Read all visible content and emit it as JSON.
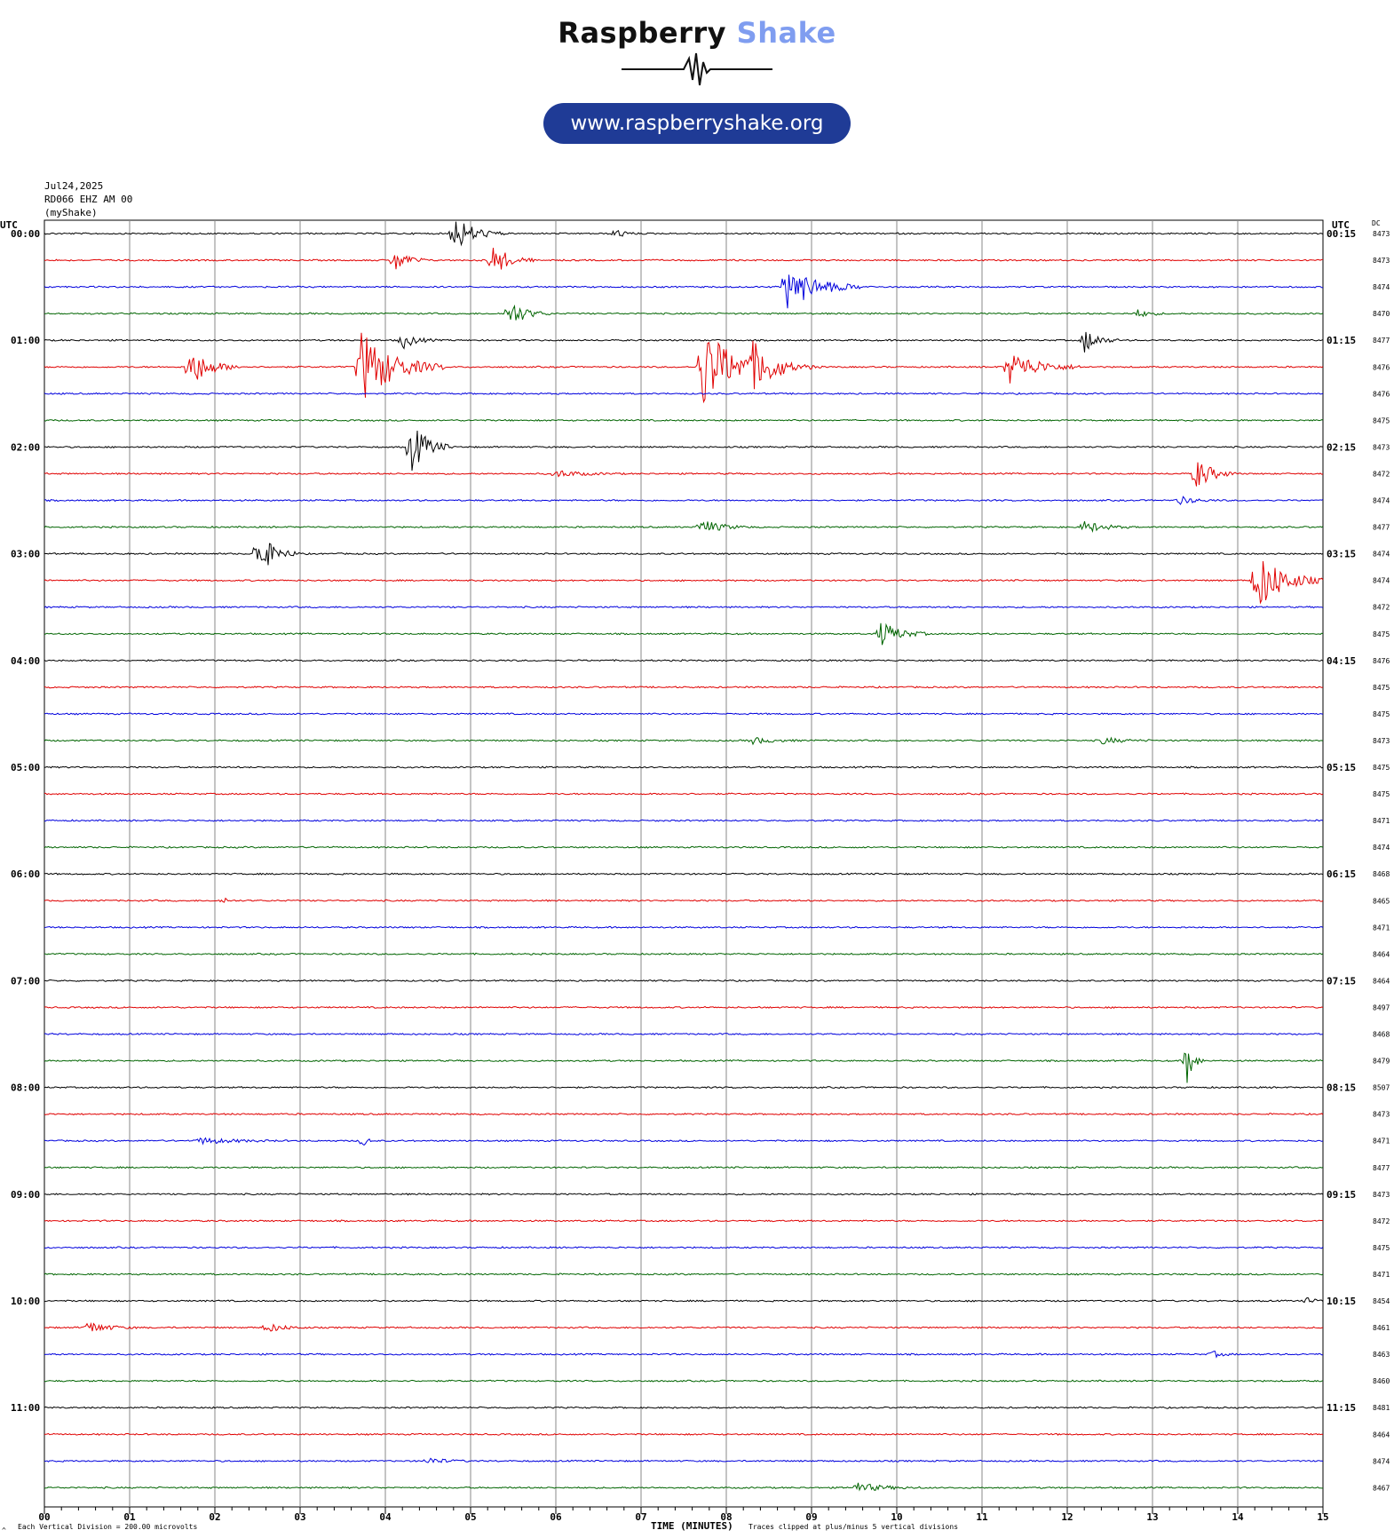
{
  "logo": {
    "brand_part1": "Raspberry",
    "brand_part2": "Shake",
    "url": "www.raspberryshake.org"
  },
  "header": {
    "date": "Jul24,2025",
    "station": "RD066 EHZ AM 00",
    "source": "(myShake)"
  },
  "footer": {
    "xlabel": "TIME (MINUTES)",
    "division_note": "Each Vertical Division =  200.00 microvolts",
    "clip_note": "Traces clipped at plus/minus 5 vertical divisions",
    "corner_mark": "^"
  },
  "colors": {
    "trace_cycle": [
      "#000000",
      "#e00000",
      "#0000dd",
      "#006400"
    ],
    "grid": "#888888",
    "logo_dark": "#111111",
    "logo_accent": "#7f9df0",
    "pill": "#1f3b96"
  },
  "chart_data": {
    "type": "line",
    "description_kind": "helicorder",
    "left_axis_title": "UTC",
    "right_axis_title": "UTC",
    "dc_title": "DC",
    "x_ticks": [
      "00",
      "01",
      "02",
      "03",
      "04",
      "05",
      "06",
      "07",
      "08",
      "09",
      "10",
      "11",
      "12",
      "13",
      "14",
      "15"
    ],
    "xlim": [
      0,
      15
    ],
    "minutes_per_line": 15,
    "line_count": 48,
    "left_labels": [
      "00:00",
      "01:00",
      "02:00",
      "03:00",
      "04:00",
      "05:00",
      "06:00",
      "07:00",
      "08:00",
      "09:00",
      "10:00",
      "11:00"
    ],
    "right_labels": [
      "00:15",
      "01:15",
      "02:15",
      "03:15",
      "04:15",
      "05:15",
      "06:15",
      "07:15",
      "08:15",
      "09:15",
      "10:15",
      "11:15"
    ],
    "dc_values": [
      8473,
      8473,
      8474,
      8470,
      8477,
      8476,
      8476,
      8475,
      8473,
      8472,
      8474,
      8477,
      8474,
      8474,
      8472,
      8475,
      8476,
      8475,
      8475,
      8473,
      8475,
      8475,
      8471,
      8474,
      8468,
      8465,
      8471,
      8464,
      8464,
      8497,
      8468,
      8479,
      8507,
      8473,
      8471,
      8477,
      8473,
      8472,
      8475,
      8471,
      8454,
      8461,
      8463,
      8460,
      8481,
      8464,
      8474,
      8467
    ],
    "events": [
      {
        "line": 0,
        "minute": 4.8,
        "amp": 2.2,
        "dur": 0.6
      },
      {
        "line": 0,
        "minute": 6.7,
        "amp": 0.6,
        "dur": 0.3
      },
      {
        "line": 1,
        "minute": 4.1,
        "amp": 1.5,
        "dur": 0.4
      },
      {
        "line": 1,
        "minute": 5.25,
        "amp": 2.0,
        "dur": 0.5
      },
      {
        "line": 2,
        "minute": 8.7,
        "amp": 2.8,
        "dur": 0.9
      },
      {
        "line": 3,
        "minute": 5.45,
        "amp": 1.6,
        "dur": 0.5
      },
      {
        "line": 3,
        "minute": 12.8,
        "amp": 0.5,
        "dur": 0.4
      },
      {
        "line": 4,
        "minute": 4.2,
        "amp": 1.0,
        "dur": 0.4
      },
      {
        "line": 4,
        "minute": 12.2,
        "amp": 1.5,
        "dur": 0.4
      },
      {
        "line": 5,
        "minute": 1.7,
        "amp": 2.4,
        "dur": 0.6
      },
      {
        "line": 5,
        "minute": 3.7,
        "amp": 4.5,
        "dur": 1.0
      },
      {
        "line": 5,
        "minute": 7.7,
        "amp": 5.0,
        "dur": 1.0
      },
      {
        "line": 5,
        "minute": 8.3,
        "amp": 2.2,
        "dur": 0.8
      },
      {
        "line": 5,
        "minute": 11.3,
        "amp": 2.0,
        "dur": 0.9
      },
      {
        "line": 8,
        "minute": 4.3,
        "amp": 3.0,
        "dur": 0.5
      },
      {
        "line": 9,
        "minute": 6.0,
        "amp": 0.4,
        "dur": 0.8
      },
      {
        "line": 9,
        "minute": 13.5,
        "amp": 2.0,
        "dur": 0.5
      },
      {
        "line": 10,
        "minute": 13.3,
        "amp": 0.5,
        "dur": 0.5
      },
      {
        "line": 11,
        "minute": 7.7,
        "amp": 0.9,
        "dur": 0.6
      },
      {
        "line": 11,
        "minute": 12.2,
        "amp": 0.7,
        "dur": 0.6
      },
      {
        "line": 12,
        "minute": 2.5,
        "amp": 2.6,
        "dur": 0.5
      },
      {
        "line": 13,
        "minute": 14.2,
        "amp": 4.0,
        "dur": 0.8
      },
      {
        "line": 15,
        "minute": 9.8,
        "amp": 1.5,
        "dur": 0.6
      },
      {
        "line": 19,
        "minute": 8.3,
        "amp": 0.4,
        "dur": 0.6
      },
      {
        "line": 19,
        "minute": 12.4,
        "amp": 0.4,
        "dur": 0.6
      },
      {
        "line": 25,
        "minute": 2.1,
        "amp": 0.6,
        "dur": 0.1
      },
      {
        "line": 31,
        "minute": 13.4,
        "amp": 3.0,
        "dur": 0.2
      },
      {
        "line": 34,
        "minute": 1.8,
        "amp": 0.4,
        "dur": 1.0
      },
      {
        "line": 34,
        "minute": 3.75,
        "amp": 1.0,
        "dur": 0.1
      },
      {
        "line": 40,
        "minute": 14.8,
        "amp": 0.4,
        "dur": 0.3
      },
      {
        "line": 41,
        "minute": 0.5,
        "amp": 0.7,
        "dur": 0.6
      },
      {
        "line": 41,
        "minute": 2.6,
        "amp": 0.6,
        "dur": 0.5
      },
      {
        "line": 42,
        "minute": 13.7,
        "amp": 0.4,
        "dur": 0.3
      },
      {
        "line": 46,
        "minute": 4.5,
        "amp": 0.4,
        "dur": 0.5
      },
      {
        "line": 47,
        "minute": 9.5,
        "amp": 0.6,
        "dur": 0.8
      }
    ]
  }
}
